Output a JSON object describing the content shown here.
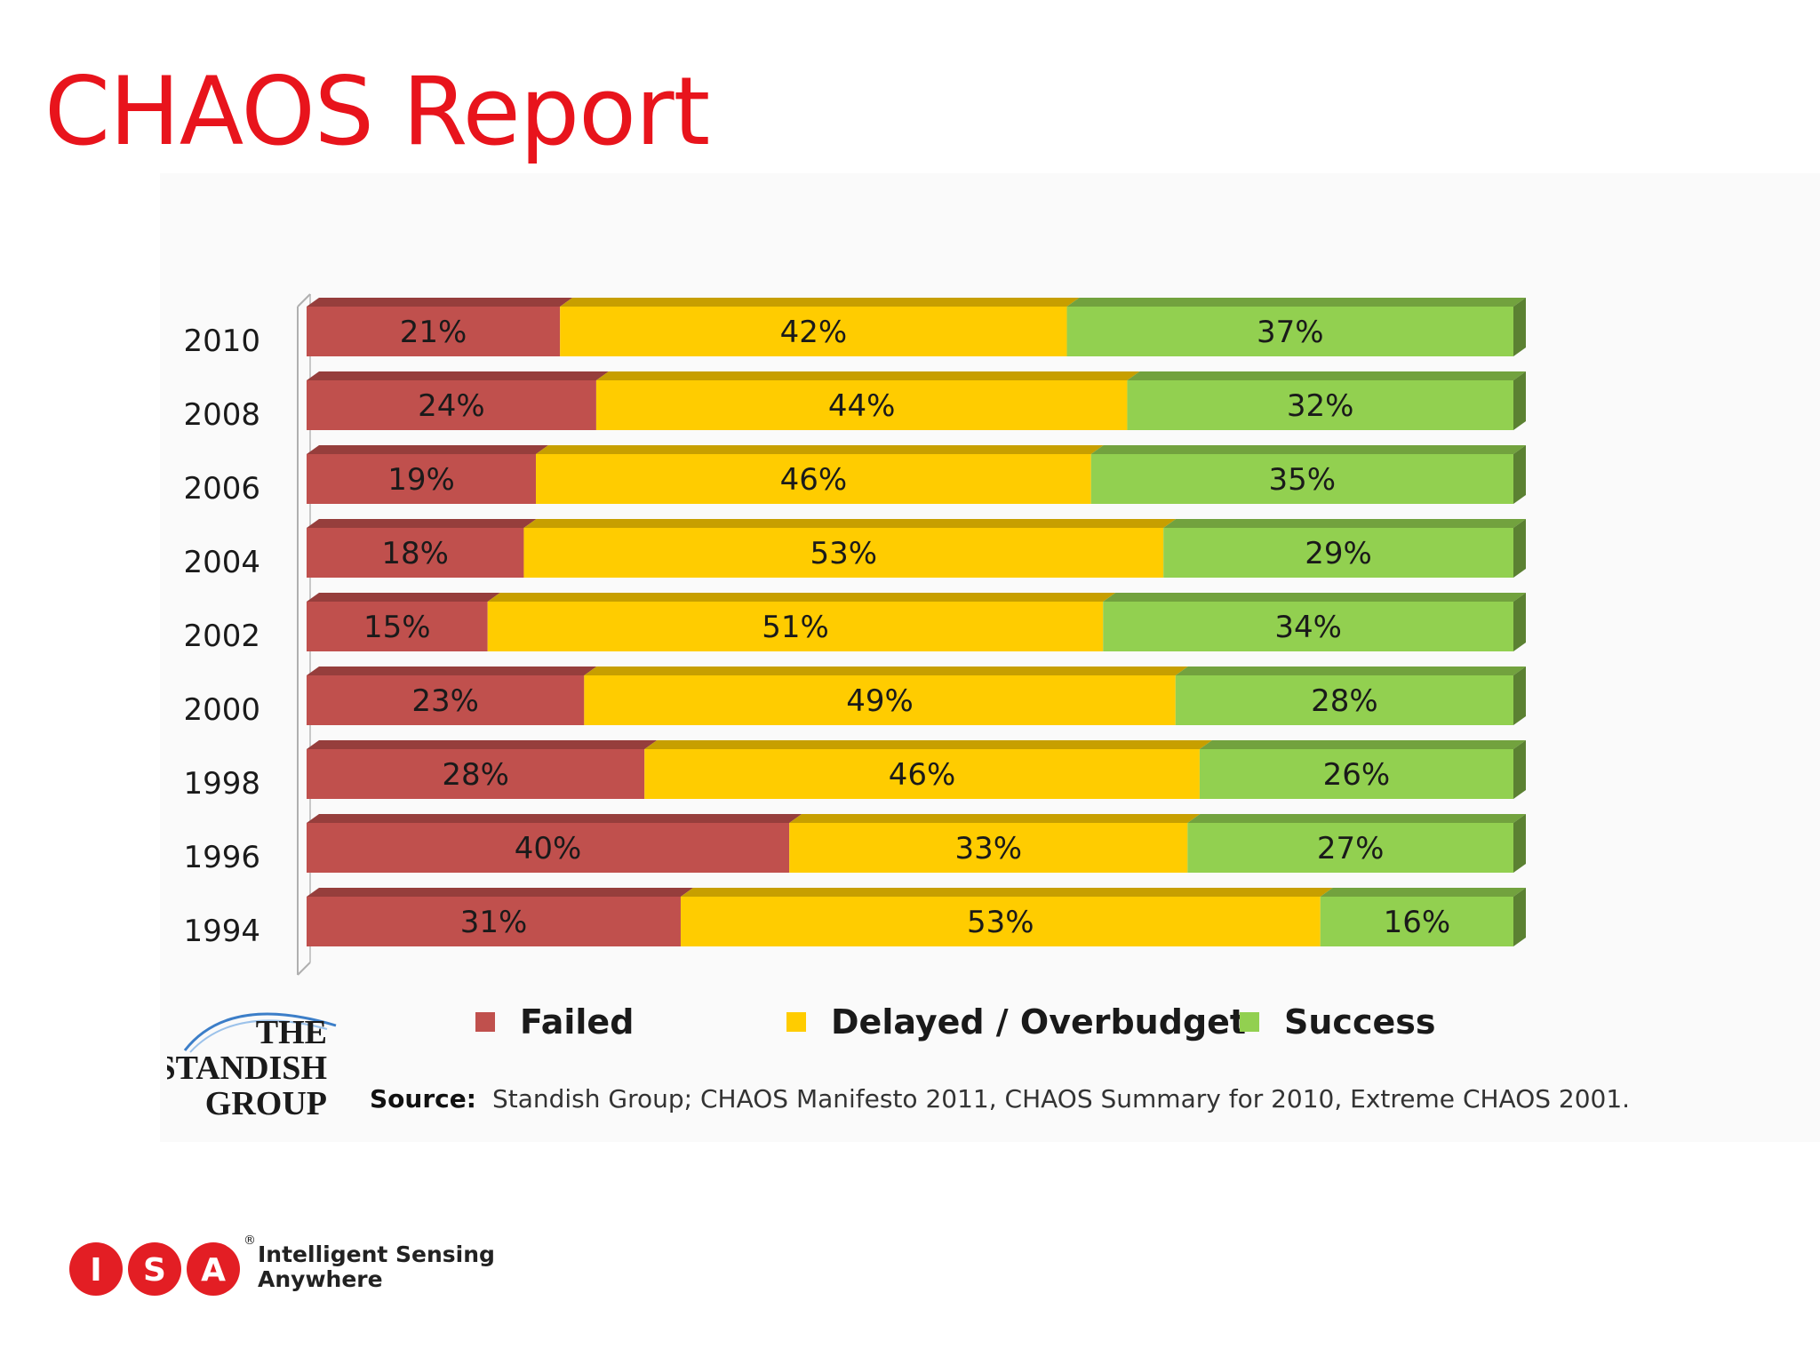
{
  "slide": {
    "title": "CHAOS Report"
  },
  "chart_data": {
    "type": "bar",
    "orientation": "horizontal",
    "stacked": true,
    "percent_stacked": true,
    "categories": [
      "2010",
      "2008",
      "2006",
      "2004",
      "2002",
      "2000",
      "1998",
      "1996",
      "1994"
    ],
    "series": [
      {
        "name": "Failed",
        "color": "#c0504d",
        "values": [
          21,
          24,
          19,
          18,
          15,
          23,
          28,
          40,
          31
        ]
      },
      {
        "name": "Delayed / Overbudget",
        "color": "#ffcc00",
        "values": [
          42,
          44,
          46,
          53,
          51,
          49,
          46,
          33,
          53
        ]
      },
      {
        "name": "Success",
        "color": "#92d050",
        "values": [
          37,
          32,
          35,
          29,
          34,
          28,
          26,
          27,
          16
        ]
      }
    ],
    "value_suffix": "%",
    "xlim": [
      0,
      100
    ],
    "grid": false,
    "legend_position": "bottom"
  },
  "source": {
    "label": "Source:",
    "text": "Standish Group; CHAOS Manifesto 2011, CHAOS Summary for 2010, Extreme CHAOS 2001."
  },
  "standish_logo": {
    "line1": "THE",
    "line2": "STANDISH",
    "line3": "GROUP"
  },
  "isa_logo": {
    "letters": [
      "I",
      "S",
      "A"
    ],
    "registered": "®",
    "tagline_line1": "Intelligent Sensing",
    "tagline_line2": "Anywhere",
    "color": "#e31e24"
  }
}
